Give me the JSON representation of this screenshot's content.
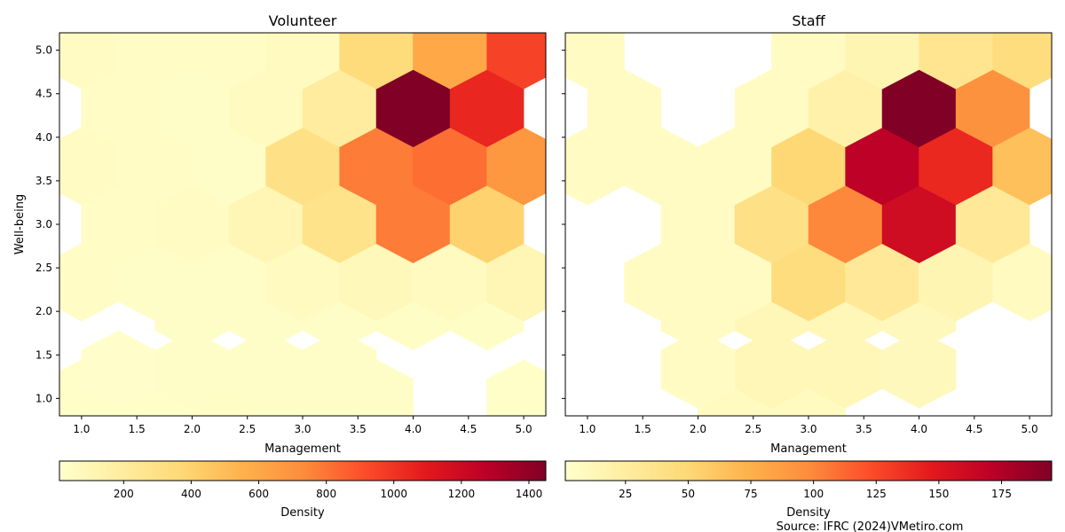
{
  "source_note": "Source: IFRC (2024)VMetiro.com",
  "chart_data": [
    {
      "type": "heatmap",
      "subtype": "hexbin",
      "title": "Volunteer",
      "xlabel": "Management",
      "ylabel": "Well-being",
      "xlim": [
        0.8,
        5.2
      ],
      "ylim": [
        0.8,
        5.2
      ],
      "xticks": [
        "1.0",
        "1.5",
        "2.0",
        "2.5",
        "3.0",
        "3.5",
        "4.0",
        "4.5",
        "5.0"
      ],
      "yticks": [
        "1.0",
        "1.5",
        "2.0",
        "2.5",
        "3.0",
        "3.5",
        "4.0",
        "4.5",
        "5.0"
      ],
      "colormap": "YlOrRd",
      "colorbar": {
        "label": "Density",
        "range": [
          10,
          1450
        ],
        "ticks": [
          "200",
          "400",
          "600",
          "800",
          "1000",
          "1200",
          "1400"
        ]
      },
      "bins": [
        {
          "x": 1.0,
          "y": 1.0,
          "v": 25
        },
        {
          "x": 1.667,
          "y": 1.0,
          "v": 25
        },
        {
          "x": 2.333,
          "y": 1.0,
          "v": 35
        },
        {
          "x": 3.0,
          "y": 1.0,
          "v": 30
        },
        {
          "x": 3.667,
          "y": 1.0,
          "v": 30
        },
        {
          "x": 5.0,
          "y": 1.0,
          "v": 25
        },
        {
          "x": 1.333,
          "y": 1.333,
          "v": 20
        },
        {
          "x": 2.0,
          "y": 1.333,
          "v": 30
        },
        {
          "x": 2.667,
          "y": 1.333,
          "v": 30
        },
        {
          "x": 3.333,
          "y": 1.333,
          "v": 30
        },
        {
          "x": 2.0,
          "y": 2.0,
          "v": 30
        },
        {
          "x": 2.667,
          "y": 2.0,
          "v": 30
        },
        {
          "x": 3.333,
          "y": 2.0,
          "v": 30
        },
        {
          "x": 4.0,
          "y": 2.0,
          "v": 35
        },
        {
          "x": 4.667,
          "y": 2.0,
          "v": 35
        },
        {
          "x": 1.0,
          "y": 2.333,
          "v": 40
        },
        {
          "x": 1.667,
          "y": 2.333,
          "v": 30
        },
        {
          "x": 2.333,
          "y": 2.333,
          "v": 30
        },
        {
          "x": 3.0,
          "y": 2.333,
          "v": 60
        },
        {
          "x": 3.667,
          "y": 2.333,
          "v": 80
        },
        {
          "x": 4.333,
          "y": 2.333,
          "v": 60
        },
        {
          "x": 5.0,
          "y": 2.333,
          "v": 110
        },
        {
          "x": 1.333,
          "y": 3.0,
          "v": 40
        },
        {
          "x": 2.0,
          "y": 3.0,
          "v": 50
        },
        {
          "x": 2.667,
          "y": 3.0,
          "v": 110
        },
        {
          "x": 3.333,
          "y": 3.0,
          "v": 280
        },
        {
          "x": 4.0,
          "y": 3.0,
          "v": 780
        },
        {
          "x": 4.667,
          "y": 3.0,
          "v": 400
        },
        {
          "x": 1.0,
          "y": 3.667,
          "v": 50
        },
        {
          "x": 1.667,
          "y": 3.667,
          "v": 40
        },
        {
          "x": 2.333,
          "y": 3.667,
          "v": 30
        },
        {
          "x": 3.0,
          "y": 3.667,
          "v": 300
        },
        {
          "x": 3.667,
          "y": 3.667,
          "v": 780
        },
        {
          "x": 4.333,
          "y": 3.667,
          "v": 820
        },
        {
          "x": 5.0,
          "y": 3.667,
          "v": 680
        },
        {
          "x": 1.333,
          "y": 4.333,
          "v": 40
        },
        {
          "x": 2.0,
          "y": 4.333,
          "v": 30
        },
        {
          "x": 2.667,
          "y": 4.333,
          "v": 60
        },
        {
          "x": 3.333,
          "y": 4.333,
          "v": 200
        },
        {
          "x": 4.0,
          "y": 4.333,
          "v": 1450
        },
        {
          "x": 4.667,
          "y": 4.333,
          "v": 1050
        },
        {
          "x": 1.0,
          "y": 5.0,
          "v": 50
        },
        {
          "x": 1.667,
          "y": 5.0,
          "v": 40
        },
        {
          "x": 2.333,
          "y": 5.0,
          "v": 40
        },
        {
          "x": 3.0,
          "y": 5.0,
          "v": 60
        },
        {
          "x": 3.667,
          "y": 5.0,
          "v": 350
        },
        {
          "x": 4.333,
          "y": 5.0,
          "v": 600
        },
        {
          "x": 5.0,
          "y": 5.0,
          "v": 950
        }
      ]
    },
    {
      "type": "heatmap",
      "subtype": "hexbin",
      "title": "Staff",
      "xlabel": "Management",
      "ylabel": "",
      "xlim": [
        0.8,
        5.2
      ],
      "ylim": [
        0.8,
        5.2
      ],
      "xticks": [
        "1.0",
        "1.5",
        "2.0",
        "2.5",
        "3.0",
        "3.5",
        "4.0",
        "4.5",
        "5.0"
      ],
      "yticks": [],
      "colormap": "YlOrRd",
      "colorbar": {
        "label": "Density",
        "range": [
          1,
          195
        ],
        "ticks": [
          "25",
          "50",
          "75",
          "100",
          "125",
          "150",
          "175"
        ]
      },
      "bins": [
        {
          "x": 2.333,
          "y": 1.0,
          "v": 8
        },
        {
          "x": 3.0,
          "y": 1.0,
          "v": 8
        },
        {
          "x": 2.0,
          "y": 1.333,
          "v": 6
        },
        {
          "x": 2.667,
          "y": 1.333,
          "v": 12
        },
        {
          "x": 3.333,
          "y": 1.333,
          "v": 12
        },
        {
          "x": 4.0,
          "y": 1.333,
          "v": 10
        },
        {
          "x": 2.0,
          "y": 2.0,
          "v": 6
        },
        {
          "x": 2.667,
          "y": 2.0,
          "v": 12
        },
        {
          "x": 3.333,
          "y": 2.0,
          "v": 12
        },
        {
          "x": 4.0,
          "y": 2.0,
          "v": 10
        },
        {
          "x": 1.667,
          "y": 2.333,
          "v": 6
        },
        {
          "x": 2.333,
          "y": 2.333,
          "v": 6
        },
        {
          "x": 3.0,
          "y": 2.333,
          "v": 45
        },
        {
          "x": 3.667,
          "y": 2.333,
          "v": 30
        },
        {
          "x": 4.333,
          "y": 2.333,
          "v": 15
        },
        {
          "x": 5.0,
          "y": 2.333,
          "v": 8
        },
        {
          "x": 2.0,
          "y": 3.0,
          "v": 6
        },
        {
          "x": 2.667,
          "y": 3.0,
          "v": 40
        },
        {
          "x": 3.333,
          "y": 3.0,
          "v": 100
        },
        {
          "x": 4.0,
          "y": 3.0,
          "v": 160
        },
        {
          "x": 4.667,
          "y": 3.0,
          "v": 30
        },
        {
          "x": 1.0,
          "y": 3.667,
          "v": 6
        },
        {
          "x": 1.667,
          "y": 3.667,
          "v": 6
        },
        {
          "x": 2.333,
          "y": 3.667,
          "v": 6
        },
        {
          "x": 3.0,
          "y": 3.667,
          "v": 50
        },
        {
          "x": 3.667,
          "y": 3.667,
          "v": 170
        },
        {
          "x": 4.333,
          "y": 3.667,
          "v": 140
        },
        {
          "x": 5.0,
          "y": 3.667,
          "v": 65
        },
        {
          "x": 1.333,
          "y": 4.333,
          "v": 6
        },
        {
          "x": 2.667,
          "y": 4.333,
          "v": 6
        },
        {
          "x": 3.333,
          "y": 4.333,
          "v": 20
        },
        {
          "x": 4.0,
          "y": 4.333,
          "v": 195
        },
        {
          "x": 4.667,
          "y": 4.333,
          "v": 95
        },
        {
          "x": 1.0,
          "y": 5.0,
          "v": 6
        },
        {
          "x": 3.0,
          "y": 5.0,
          "v": 6
        },
        {
          "x": 3.667,
          "y": 5.0,
          "v": 15
        },
        {
          "x": 4.333,
          "y": 5.0,
          "v": 35
        },
        {
          "x": 5.0,
          "y": 5.0,
          "v": 45
        }
      ]
    }
  ]
}
